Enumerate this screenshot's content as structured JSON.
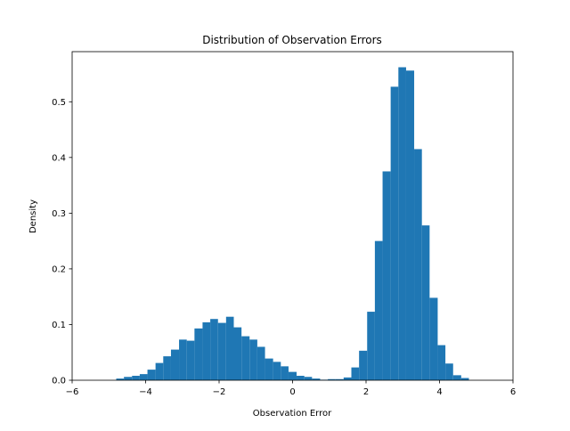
{
  "chart_data": {
    "type": "histogram",
    "title": "Distribution of Observation Errors",
    "x_label": "Observation Error",
    "y_label": "Density",
    "color": "#1f77b4",
    "bins": [
      -4.8,
      -4.59,
      -4.37,
      -4.16,
      -3.95,
      -3.73,
      -3.52,
      -3.31,
      -3.09,
      -2.88,
      -2.67,
      -2.45,
      -2.24,
      -2.03,
      -1.81,
      -1.6,
      -1.39,
      -1.17,
      -0.96,
      -0.75,
      -0.53,
      -0.32,
      -0.11,
      0.11,
      0.32,
      0.53,
      0.75,
      0.96,
      1.17,
      1.39,
      1.6,
      1.81,
      2.03,
      2.24,
      2.45,
      2.67,
      2.88,
      3.09,
      3.31,
      3.52,
      3.73,
      3.95,
      4.16,
      4.37,
      4.59,
      4.8
    ],
    "values": [
      0.003,
      0.006,
      0.008,
      0.011,
      0.019,
      0.031,
      0.043,
      0.055,
      0.073,
      0.071,
      0.093,
      0.104,
      0.11,
      0.103,
      0.114,
      0.095,
      0.079,
      0.073,
      0.06,
      0.039,
      0.033,
      0.025,
      0.015,
      0.008,
      0.006,
      0.003,
      0.001,
      0.002,
      0.002,
      0.005,
      0.023,
      0.053,
      0.123,
      0.25,
      0.375,
      0.527,
      0.562,
      0.556,
      0.415,
      0.278,
      0.148,
      0.063,
      0.03,
      0.009,
      0.004
    ],
    "xlim": [
      -6,
      6
    ],
    "ylim": [
      0,
      0.59
    ],
    "xticks": [
      {
        "value": -6,
        "label": "−6"
      },
      {
        "value": -4,
        "label": "−4"
      },
      {
        "value": -2,
        "label": "−2"
      },
      0,
      2,
      4,
      6
    ],
    "yticks": [
      {
        "value": 0,
        "label": "0.0"
      },
      0.1,
      0.2,
      0.3,
      0.4,
      0.5
    ]
  }
}
